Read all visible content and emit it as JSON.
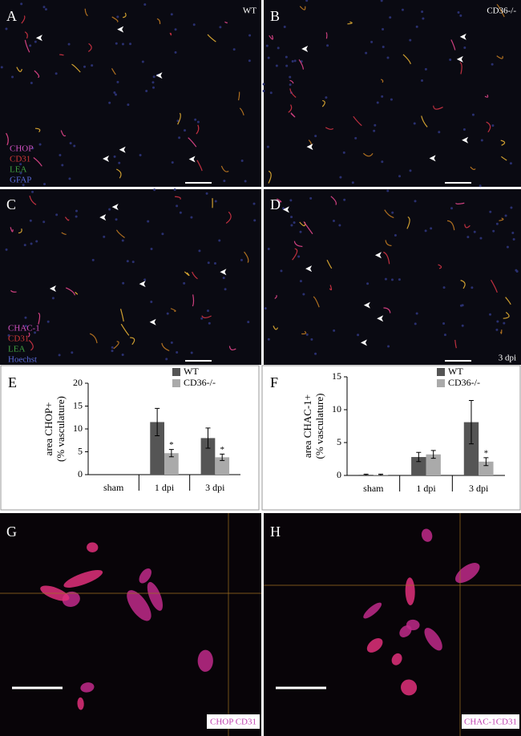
{
  "panels": [
    {
      "label": "A",
      "tag": "WT",
      "legend": [
        "CHOP",
        "CD31",
        "LEA",
        "GFAP"
      ]
    },
    {
      "label": "B",
      "tag": "CD36-/-"
    },
    {
      "label": "C",
      "legend": [
        "CHAC-1",
        "CD31",
        "LEA",
        "Hoechst"
      ]
    },
    {
      "label": "D",
      "tag": "3 dpi"
    },
    {
      "label": "G",
      "tag": "CHOP CD31"
    },
    {
      "label": "H",
      "tag": "CHAC-1CD31"
    }
  ],
  "chart_data": [
    {
      "type": "bar",
      "label": "E",
      "ylabel": [
        "area CHOP+",
        "(% vasculature)"
      ],
      "categories": [
        "sham",
        "1 dpi",
        "3 dpi"
      ],
      "ylim": [
        0,
        20
      ],
      "yticks": [
        0,
        5,
        10,
        15,
        20
      ],
      "legend": "top-right",
      "series": [
        {
          "name": "WT",
          "color": "#555555",
          "values": [
            null,
            11.5,
            8
          ],
          "errors": [
            null,
            3,
            2.2
          ],
          "annotations": [
            null,
            null,
            null
          ]
        },
        {
          "name": "CD36-/-",
          "color": "#aaaaaa",
          "values": [
            null,
            4.7,
            3.8
          ],
          "errors": [
            null,
            0.8,
            0.7
          ],
          "annotations": [
            null,
            "*",
            "*"
          ]
        }
      ]
    },
    {
      "type": "bar",
      "label": "F",
      "ylabel": [
        "area CHAC-1+",
        "(% vasculature)"
      ],
      "categories": [
        "sham",
        "1 dpi",
        "3 dpi"
      ],
      "ylim": [
        0,
        15
      ],
      "yticks": [
        0,
        5,
        10,
        15
      ],
      "legend": "top-right",
      "series": [
        {
          "name": "WT",
          "color": "#555555",
          "values": [
            0.1,
            2.8,
            8.1
          ],
          "errors": [
            0.1,
            0.7,
            3.3
          ],
          "annotations": [
            null,
            null,
            null
          ]
        },
        {
          "name": "CD36-/-",
          "color": "#aaaaaa",
          "values": [
            0.1,
            3.2,
            2.1
          ],
          "errors": [
            0.1,
            0.6,
            0.6
          ],
          "annotations": [
            null,
            null,
            "*"
          ]
        }
      ]
    }
  ]
}
